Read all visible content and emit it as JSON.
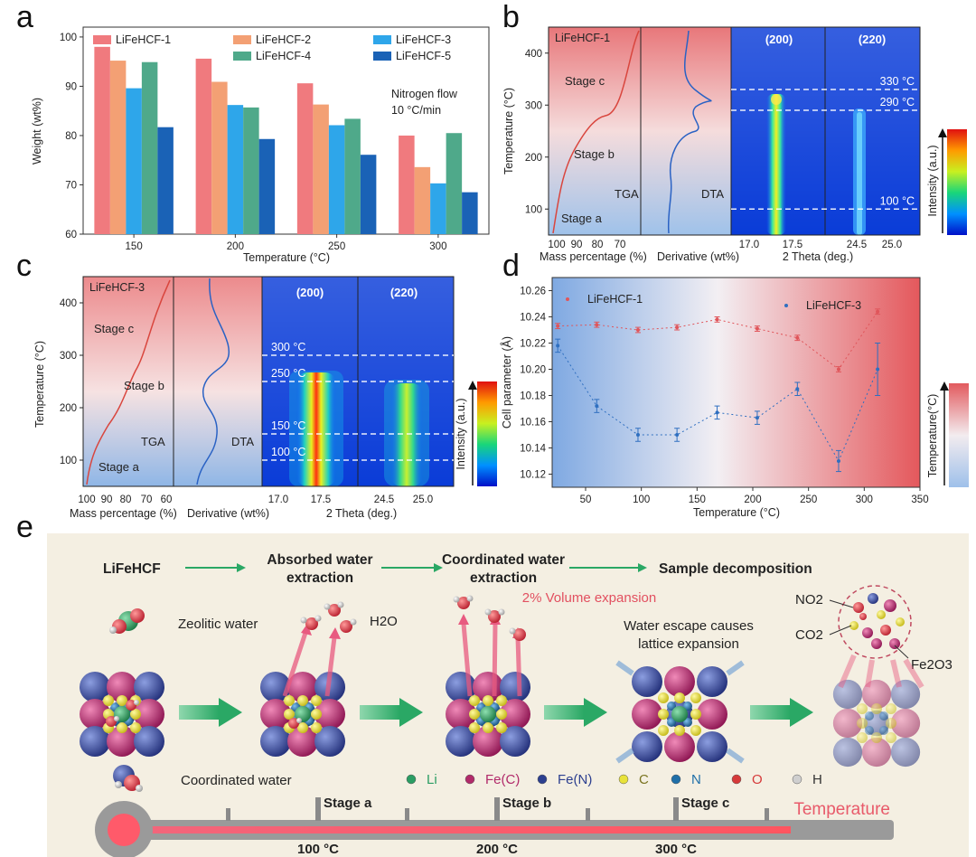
{
  "panel_labels": {
    "a": "a",
    "b": "b",
    "c": "c",
    "d": "d",
    "e": "e"
  },
  "chart_data": [
    {
      "panel": "a",
      "type": "bar",
      "categories": [
        "150",
        "200",
        "250",
        "300"
      ],
      "series": [
        {
          "name": "LiFeHCF-1",
          "color": "#f07a7e",
          "values": [
            98.0,
            95.6,
            90.6,
            80.0
          ]
        },
        {
          "name": "LiFeHCF-2",
          "color": "#f3a074",
          "values": [
            95.2,
            90.9,
            86.3,
            73.6
          ]
        },
        {
          "name": "LiFeHCF-3",
          "color": "#2ea6ea",
          "values": [
            89.6,
            86.2,
            82.1,
            70.3
          ]
        },
        {
          "name": "LiFeHCF-4",
          "color": "#4fa98a",
          "values": [
            94.9,
            85.7,
            83.4,
            80.5
          ]
        },
        {
          "name": "LiFeHCF-5",
          "color": "#1a62b6",
          "values": [
            81.7,
            79.3,
            76.1,
            68.5
          ]
        }
      ],
      "ylim": [
        60,
        102
      ],
      "yticks": [
        "60",
        "70",
        "80",
        "90",
        "100"
      ],
      "xlabel": "Temperature (°C)",
      "ylabel": "Weight (wt%)",
      "annotation": [
        "Nitrogen flow",
        "10 °C/min"
      ]
    },
    {
      "panel": "b",
      "type": "heatmap",
      "sample_label": "LiFeHCF-1",
      "ylabel": "Temperature (°C)",
      "ylim": [
        50,
        450
      ],
      "yticks": [
        "100",
        "200",
        "300",
        "400"
      ],
      "stages": [
        "Stage c",
        "Stage b",
        "Stage a"
      ],
      "curve_labels": {
        "tga": "TGA",
        "dta": "DTA"
      },
      "heatmap_titles": [
        "(200)",
        "(220)"
      ],
      "temperature_lines": [
        "330 °C",
        "290 °C",
        "100 °C"
      ],
      "xlabels": {
        "tga": "Mass percentage (%)",
        "dta": "Derivative (wt%)",
        "heat": "2 Theta (deg.)"
      },
      "tga_ticks": [
        "100",
        "90",
        "80",
        "70"
      ],
      "heat_ticks_left": [
        "17.0",
        "17.5"
      ],
      "heat_ticks_right": [
        "24.5",
        "25.0"
      ],
      "colorbar_label": "Intensity (a.u.)"
    },
    {
      "panel": "c",
      "type": "heatmap",
      "sample_label": "LiFeHCF-3",
      "ylabel": "Temperature (°C)",
      "ylim": [
        50,
        450
      ],
      "yticks": [
        "100",
        "200",
        "300",
        "400"
      ],
      "stages": [
        "Stage c",
        "Stage b",
        "Stage a"
      ],
      "curve_labels": {
        "tga": "TGA",
        "dta": "DTA"
      },
      "heatmap_titles": [
        "(200)",
        "(220)"
      ],
      "temperature_lines": [
        "300 °C",
        "250 °C",
        "150 °C",
        "100 °C"
      ],
      "xlabels": {
        "tga": "Mass percentage (%)",
        "dta": "Derivative (wt%)",
        "heat": "2 Theta (deg.)"
      },
      "tga_ticks": [
        "100",
        "90",
        "80",
        "70",
        "60"
      ],
      "heat_ticks_left": [
        "17.0",
        "17.5"
      ],
      "heat_ticks_right": [
        "24.5",
        "25.0"
      ],
      "colorbar_label": "Intensity (a.u.)"
    },
    {
      "panel": "d",
      "type": "scatter",
      "xlabel": "Temperature (°C)",
      "ylabel": "Cell parameter (Å)",
      "xlim": [
        20,
        350
      ],
      "ylim": [
        10.11,
        10.27
      ],
      "xticks": [
        "50",
        "100",
        "150",
        "200",
        "250",
        "300",
        "350"
      ],
      "yticks": [
        "10.12",
        "10.14",
        "10.16",
        "10.18",
        "10.20",
        "10.22",
        "10.24",
        "10.26"
      ],
      "series": [
        {
          "name": "LiFeHCF-1",
          "color": "#e0555a",
          "x": [
            25,
            60,
            97,
            132,
            168,
            204,
            240,
            277,
            312
          ],
          "y": [
            10.233,
            10.234,
            10.23,
            10.232,
            10.238,
            10.231,
            10.224,
            10.2,
            10.244
          ],
          "err": [
            0.002,
            0.002,
            0.002,
            0.002,
            0.002,
            0.002,
            0.002,
            0.002,
            0.002
          ]
        },
        {
          "name": "LiFeHCF-3",
          "color": "#2f6fc0",
          "x": [
            25,
            60,
            97,
            132,
            168,
            204,
            240,
            277,
            312
          ],
          "y": [
            10.218,
            10.172,
            10.15,
            10.15,
            10.167,
            10.163,
            10.185,
            10.13,
            10.2
          ],
          "err": [
            0.005,
            0.005,
            0.005,
            0.005,
            0.005,
            0.005,
            0.005,
            0.008,
            0.02
          ]
        }
      ],
      "colorbar_label": "Temperature(°C)"
    }
  ],
  "panel_e": {
    "flow_steps": [
      "LiFeHCF",
      "Absorbed water extraction",
      "Coordinated water extraction",
      "Sample decomposition"
    ],
    "flow_step2_lines": [
      "Absorbed water",
      "extraction"
    ],
    "flow_step3_lines": [
      "Coordinated water",
      "extraction"
    ],
    "volume_note": "2% Volume expansion",
    "zeolitic_water": "Zeolitic water",
    "h2o": "H2O",
    "escape_note": [
      "Water escape causes",
      "lattice expansion"
    ],
    "products": {
      "no2": "NO2",
      "co2": "CO2",
      "fe2o3": "Fe2O3"
    },
    "coordinated_water": "Coordinated water",
    "legend": [
      {
        "label": "Li",
        "color": "#2a9d63",
        "text_color": "#2a9d63"
      },
      {
        "label": "Fe(C)",
        "color": "#b12a6a",
        "text_color": "#b12a6a"
      },
      {
        "label": "Fe(N)",
        "color": "#2c3f8f",
        "text_color": "#2c3f8f"
      },
      {
        "label": "C",
        "color": "#e8e23a",
        "text_color": "#7a7420"
      },
      {
        "label": "N",
        "color": "#1f6fa8",
        "text_color": "#1f6fa8"
      },
      {
        "label": "O",
        "color": "#d63a3a",
        "text_color": "#d63a3a"
      },
      {
        "label": "H",
        "color": "#cfcfcf",
        "text_color": "#333"
      }
    ],
    "stages": [
      "Stage a",
      "Stage b",
      "Stage c"
    ],
    "temperatures": [
      "100 °C",
      "200 °C",
      "300 °C"
    ],
    "temperature_label": "Temperature"
  }
}
